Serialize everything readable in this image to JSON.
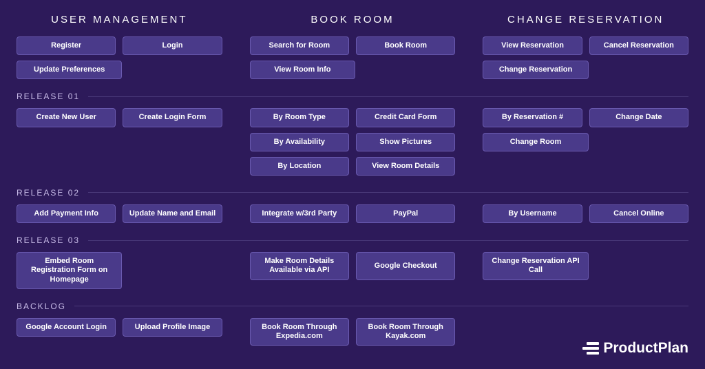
{
  "background_color": "#2d1a5a",
  "card_bg": "#4a3a8a",
  "card_border": "#6a5ab0",
  "text_color": "#ffffff",
  "divider_color": "#4a3a7a",
  "brand": "ProductPlan",
  "columns": {
    "user_mgmt": {
      "title": "USER MANAGEMENT"
    },
    "book_room": {
      "title": "BOOK ROOM"
    },
    "change_res": {
      "title": "CHANGE RESERVATION"
    }
  },
  "epics": {
    "um_r1": "Register",
    "um_r2": "Login",
    "um_r3": "Update Preferences",
    "br_r1": "Search for Room",
    "br_r2": "Book Room",
    "br_r3": "View Room Info",
    "cr_r1": "View Reservation",
    "cr_r2": "Cancel Reservation",
    "cr_r3": "Change Reservation"
  },
  "releases": {
    "r01": {
      "label": "RELEASE 01"
    },
    "r02": {
      "label": "RELEASE 02"
    },
    "r03": {
      "label": "RELEASE 03"
    },
    "backlog": {
      "label": "BACKLOG"
    }
  },
  "cards": {
    "r01_um_1": "Create New User",
    "r01_um_2": "Create Login Form",
    "r01_br_1": "By Room Type",
    "r01_br_2": "Credit Card Form",
    "r01_br_3": "By Availability",
    "r01_br_4": "Show Pictures",
    "r01_br_5": "By Location",
    "r01_br_6": "View Room Details",
    "r01_cr_1": "By Reservation #",
    "r01_cr_2": "Change Date",
    "r01_cr_3": "Change Room",
    "r02_um_1": "Add Payment Info",
    "r02_um_2": "Update Name and Email",
    "r02_br_1": "Integrate w/3rd Party",
    "r02_br_2": "PayPal",
    "r02_cr_1": "By Username",
    "r02_cr_2": "Cancel Online",
    "r03_um_1": "Embed Room Registration Form on Homepage",
    "r03_br_1": "Make Room Details Available via API",
    "r03_br_2": "Google Checkout",
    "r03_cr_1": "Change Reservation API Call",
    "bl_um_1": "Google Account Login",
    "bl_um_2": "Upload Profile Image",
    "bl_br_1": "Book Room Through Expedia.com",
    "bl_br_2": "Book Room Through Kayak.com"
  }
}
